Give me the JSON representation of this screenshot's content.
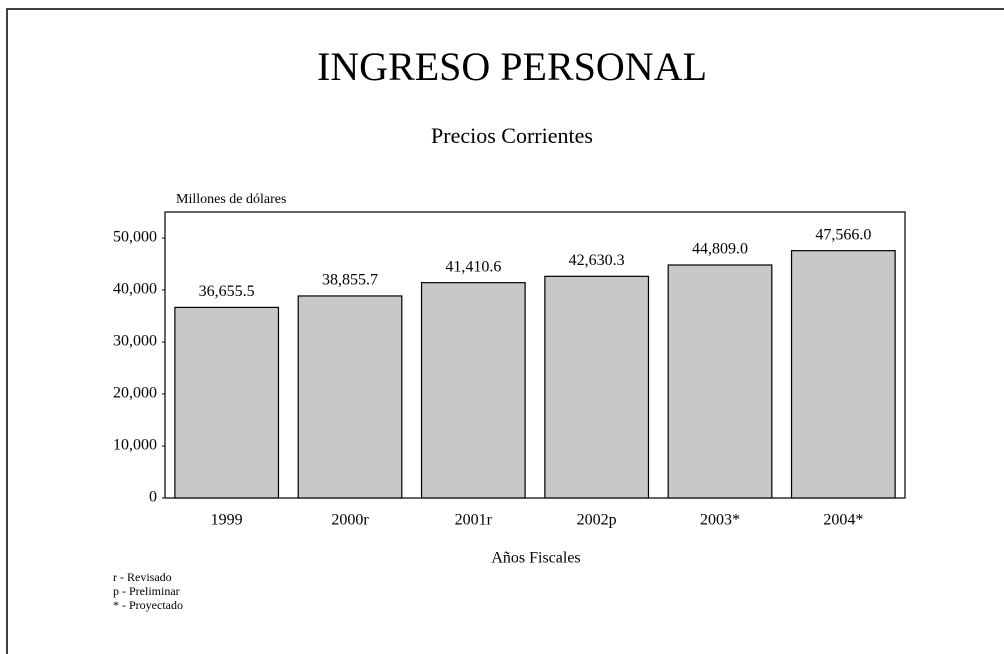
{
  "chart_data": {
    "type": "bar",
    "title": "INGRESO PERSONAL",
    "subtitle": "Precios Corrientes",
    "y_axis_label": "Millones de dólares",
    "x_axis_label": "Años Fiscales",
    "categories": [
      "1999",
      "2000r",
      "2001r",
      "2002p",
      "2003*",
      "2004*"
    ],
    "values": [
      36655.5,
      38855.7,
      41410.6,
      42630.3,
      44809.0,
      47566.0
    ],
    "value_labels": [
      "36,655.5",
      "38,855.7",
      "41,410.6",
      "42,630.3",
      "44,809.0",
      "47,566.0"
    ],
    "color": "#c8c8c8",
    "ylim": [
      0,
      55000
    ],
    "yticks": [
      0,
      {
        "value": 10000,
        "label": "10,000"
      },
      {
        "value": 20000,
        "label": "20,000"
      },
      {
        "value": 30000,
        "label": "30,000"
      },
      {
        "value": 40000,
        "label": "40,000"
      },
      {
        "value": 50000,
        "label": "50,000"
      }
    ],
    "grid": false,
    "notes": [
      "r - Revisado",
      "p - Preliminar",
      "* - Proyectado"
    ]
  }
}
